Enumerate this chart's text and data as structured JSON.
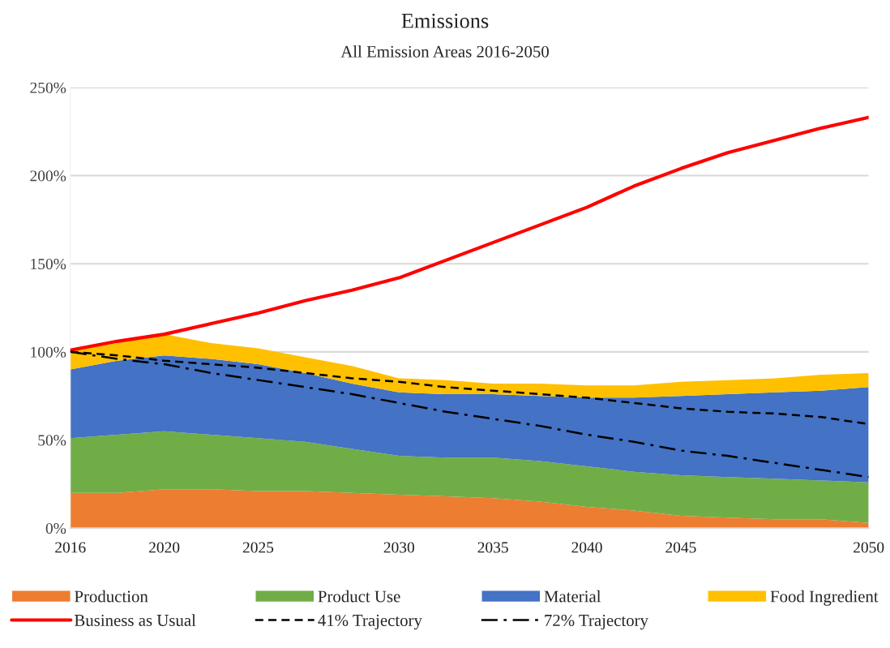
{
  "chart_data": {
    "type": "area",
    "title": "Emissions",
    "subtitle": "All Emission Areas 2016-2050",
    "categories": [
      "2016",
      null,
      "2020",
      null,
      "2025",
      null,
      null,
      "2030",
      null,
      "2035",
      null,
      "2040",
      null,
      "2045",
      null,
      null,
      null,
      "2050"
    ],
    "stacked": true,
    "series": [
      {
        "name": "Production",
        "color": "#ed7d31",
        "values": [
          20,
          20,
          22,
          22,
          21,
          21,
          20,
          19,
          18,
          17,
          15,
          12,
          10,
          7,
          6,
          5,
          5,
          3
        ]
      },
      {
        "name": "Product Use",
        "color": "#70ad47",
        "values": [
          31,
          33,
          33,
          31,
          30,
          28,
          25,
          22,
          22,
          23,
          23,
          23,
          22,
          23,
          23,
          23,
          22,
          23
        ]
      },
      {
        "name": "Material",
        "color": "#4472c4",
        "values": [
          39,
          42,
          43,
          43,
          42,
          39,
          37,
          36,
          36,
          36,
          37,
          39,
          42,
          45,
          47,
          49,
          51,
          54
        ]
      },
      {
        "name": "Food Ingredient",
        "color": "#ffc000",
        "values": [
          11,
          10,
          12,
          9,
          9,
          9,
          10,
          8,
          8,
          6,
          7,
          7,
          7,
          8,
          8,
          8,
          9,
          8
        ]
      },
      {
        "name": "Business as Usual",
        "type": "line",
        "color": "#ff0000",
        "line_style": "solid",
        "values": [
          101,
          106,
          110,
          116,
          122,
          129,
          135,
          142,
          152,
          162,
          172,
          182,
          194,
          204,
          213,
          220,
          227,
          233
        ]
      },
      {
        "name": "41% Trajectory",
        "type": "line",
        "color": "#000000",
        "line_style": "dashed",
        "values": [
          100,
          98,
          95,
          93,
          91,
          88,
          85,
          83,
          80,
          78,
          76,
          74,
          71,
          68,
          66,
          65,
          63,
          59
        ]
      },
      {
        "name": "72% Trajectory",
        "type": "line",
        "color": "#000000",
        "line_style": "dashdot",
        "values": [
          100,
          96,
          93,
          88,
          84,
          80,
          76,
          71,
          66,
          62,
          58,
          53,
          49,
          44,
          41,
          37,
          33,
          29
        ]
      }
    ],
    "ylim": [
      0,
      250
    ],
    "yticks": [
      {
        "value": 0,
        "label": "0%"
      },
      {
        "value": 50,
        "label": "50%"
      },
      {
        "value": 100,
        "label": "100%"
      },
      {
        "value": 150,
        "label": "150%"
      },
      {
        "value": 200,
        "label": "200%"
      },
      {
        "value": 250,
        "label": "250%"
      }
    ],
    "grid": "y",
    "legend": "bottom"
  }
}
